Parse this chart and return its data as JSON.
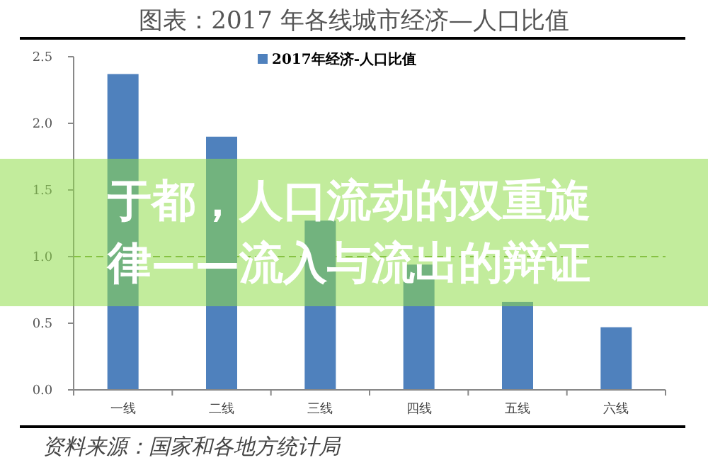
{
  "chart_data": {
    "type": "bar",
    "title": "图表：2017 年各线城市经济—人口比值",
    "categories": [
      "一线",
      "二线",
      "三线",
      "四线",
      "五线",
      "六线"
    ],
    "series": [
      {
        "name": "2017年经济-人口比值",
        "color": "#4f81bd",
        "values": [
          2.37,
          1.9,
          1.27,
          0.94,
          0.66,
          0.47
        ]
      }
    ],
    "ylim": [
      0,
      2.5
    ],
    "yticks": [
      {
        "value": 0,
        "label": "0.0"
      },
      {
        "value": 0.5,
        "label": "0.5"
      },
      {
        "value": 1,
        "label": "1.0"
      },
      {
        "value": 1.5,
        "label": "1.5"
      },
      {
        "value": 2,
        "label": "2.0"
      },
      {
        "value": 2.5,
        "label": "2.5"
      }
    ],
    "ref_lines": [
      {
        "axis": "y",
        "value": 1.0,
        "label": null,
        "color": "#7aa33a",
        "line_style": "dashed"
      }
    ],
    "legend": "top",
    "grid": false,
    "annotations": [
      "于都，人口流动的双重旋律——流入与流出的辩证",
      "资料来源：国家和各地方统计局"
    ]
  }
}
